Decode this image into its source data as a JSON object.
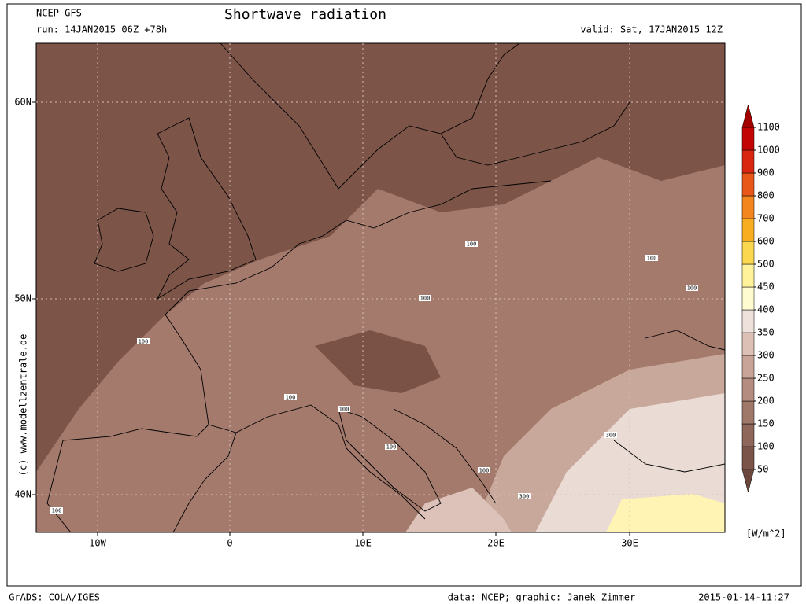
{
  "header": {
    "model": "NCEP GFS",
    "run": "run: 14JAN2015 06Z +78h",
    "title": "Shortwave radiation",
    "valid": "valid: Sat, 17JAN2015 12Z"
  },
  "map": {
    "lon_labels": [
      "10W",
      "0",
      "10E",
      "20E",
      "30E"
    ],
    "lat_labels": [
      "60N",
      "50N",
      "40N"
    ],
    "contour_labels": [
      "100",
      "100",
      "100",
      "100",
      "100",
      "100",
      "100",
      "100",
      "100",
      "100",
      "300",
      "300"
    ],
    "credit": "(c) www.modellzentrale.de"
  },
  "colorbar": {
    "levels": [
      50,
      100,
      150,
      200,
      250,
      300,
      350,
      400,
      450,
      500,
      600,
      700,
      800,
      900,
      1000,
      1100
    ],
    "colors": [
      "#6a463c",
      "#7a5448",
      "#8e665a",
      "#a0786a",
      "#b48c80",
      "#c8a498",
      "#dcc0b6",
      "#eee0da",
      "#fffbd0",
      "#fff29a",
      "#fad74f",
      "#f8ad20",
      "#f3861c",
      "#e85618",
      "#d82610",
      "#c20404",
      "#a30000"
    ],
    "unit": "[W/m^2]"
  },
  "footer": {
    "left": "GrADS: COLA/IGES",
    "center": "data: NCEP; graphic: Janek Zimmer",
    "right": "2015-01-14-11:27"
  }
}
